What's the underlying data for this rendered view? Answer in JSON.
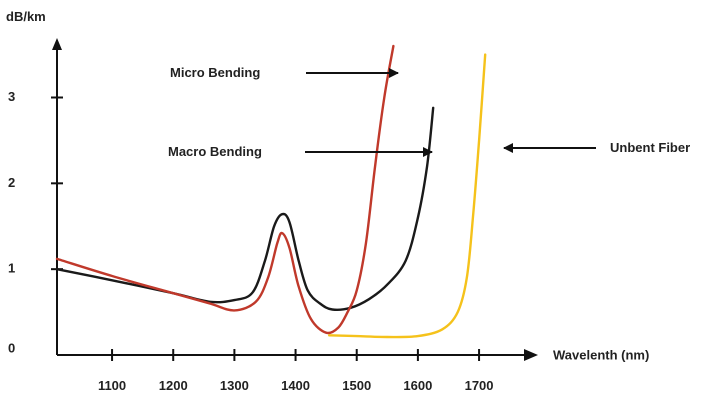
{
  "chart_data": {
    "type": "line",
    "title": "",
    "xlabel": "Wavelenth (nm)",
    "ylabel": "dB/km",
    "xlim": [
      1010,
      1780
    ],
    "ylim": [
      0,
      3.6
    ],
    "x_ticks": [
      1100,
      1200,
      1300,
      1400,
      1500,
      1600,
      1700
    ],
    "y_ticks": [
      0,
      1,
      2,
      3
    ],
    "series": [
      {
        "name": "Unbent Fiber",
        "color": "#F5C21B",
        "points": [
          [
            1455,
            0.23
          ],
          [
            1500,
            0.22
          ],
          [
            1550,
            0.21
          ],
          [
            1600,
            0.22
          ],
          [
            1640,
            0.3
          ],
          [
            1665,
            0.5
          ],
          [
            1680,
            0.9
          ],
          [
            1690,
            1.6
          ],
          [
            1700,
            2.5
          ],
          [
            1710,
            3.5
          ]
        ]
      },
      {
        "name": "Macro Bending",
        "color": "#1a1a1a",
        "points": [
          [
            1010,
            1.0
          ],
          [
            1100,
            0.87
          ],
          [
            1200,
            0.72
          ],
          [
            1260,
            0.62
          ],
          [
            1300,
            0.64
          ],
          [
            1330,
            0.73
          ],
          [
            1350,
            1.1
          ],
          [
            1365,
            1.5
          ],
          [
            1378,
            1.64
          ],
          [
            1390,
            1.55
          ],
          [
            1405,
            1.1
          ],
          [
            1420,
            0.75
          ],
          [
            1440,
            0.6
          ],
          [
            1460,
            0.53
          ],
          [
            1490,
            0.55
          ],
          [
            1520,
            0.65
          ],
          [
            1550,
            0.82
          ],
          [
            1580,
            1.1
          ],
          [
            1600,
            1.6
          ],
          [
            1615,
            2.2
          ],
          [
            1625,
            2.88
          ]
        ]
      },
      {
        "name": "Micro Bending",
        "color": "#C0392B",
        "points": [
          [
            1010,
            1.12
          ],
          [
            1100,
            0.92
          ],
          [
            1200,
            0.72
          ],
          [
            1260,
            0.6
          ],
          [
            1300,
            0.52
          ],
          [
            1335,
            0.62
          ],
          [
            1355,
            0.9
          ],
          [
            1370,
            1.3
          ],
          [
            1378,
            1.42
          ],
          [
            1390,
            1.25
          ],
          [
            1405,
            0.8
          ],
          [
            1425,
            0.42
          ],
          [
            1450,
            0.26
          ],
          [
            1470,
            0.32
          ],
          [
            1485,
            0.5
          ],
          [
            1500,
            0.75
          ],
          [
            1515,
            1.3
          ],
          [
            1530,
            2.2
          ],
          [
            1545,
            3.0
          ],
          [
            1560,
            3.6
          ]
        ]
      }
    ],
    "annotations": [
      {
        "text": "Micro Bending",
        "target_series": "Micro Bending"
      },
      {
        "text": "Macro Bending",
        "target_series": "Macro Bending"
      },
      {
        "text": "Unbent Fiber",
        "target_series": "Unbent Fiber"
      }
    ],
    "grid": false,
    "legend": "none"
  }
}
